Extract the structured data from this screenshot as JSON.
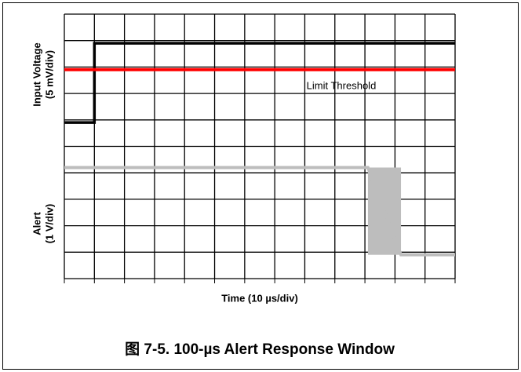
{
  "chart_data": {
    "type": "line",
    "caption": "图 7-5. 100-µs Alert Response Window",
    "xlabel": "Time (10 µs/div)",
    "ylabel_top": [
      "Input Voltage",
      "(5 mV/div)"
    ],
    "ylabel_bottom": [
      "Alert",
      "(1 V/div)"
    ],
    "annotation": "Limit Threshold",
    "xlim": [
      0,
      13
    ],
    "ylim": [
      0,
      10
    ],
    "xticks": [
      0,
      1,
      2,
      3,
      4,
      5,
      6,
      7,
      8,
      9,
      10,
      11,
      12,
      13
    ],
    "yticks": [
      0,
      1,
      2,
      3,
      4,
      5,
      6,
      7,
      8,
      9,
      10
    ],
    "grid": true,
    "series": [
      {
        "name": "Input Voltage",
        "color": "#000000",
        "x": [
          0,
          1,
          1,
          13
        ],
        "values": [
          5.9,
          5.9,
          8.9,
          8.9
        ]
      },
      {
        "name": "Limit Threshold",
        "color": "#ff0000",
        "x": [
          0,
          13
        ],
        "values": [
          7.9,
          7.9
        ]
      },
      {
        "name": "Alert",
        "color": "#bdbdbd",
        "x": [
          0,
          10.1,
          11.2,
          13
        ],
        "values": [
          4.2,
          4.2,
          0.9,
          0.9
        ]
      }
    ],
    "burst": {
      "color": "#bdbdbd",
      "x": [
        10.1,
        11.2
      ],
      "values": [
        0.9,
        4.2
      ]
    }
  }
}
